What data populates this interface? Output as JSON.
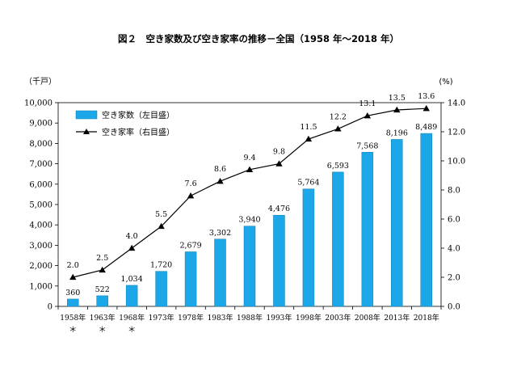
{
  "chart_data": {
    "type": "bar+line",
    "title": "図２　空き家数及び空き家率の推移－全国（1958 年～2018 年）",
    "left_axis_unit": "（千戸）",
    "right_axis_unit": "(%)",
    "left_ylim": [
      0,
      10000
    ],
    "left_ticks": [
      "0",
      "1,000",
      "2,000",
      "3,000",
      "4,000",
      "5,000",
      "6,000",
      "7,000",
      "8,000",
      "9,000",
      "10,000"
    ],
    "right_ylim": [
      0,
      14
    ],
    "right_ticks": [
      "0.0",
      "2.0",
      "4.0",
      "6.0",
      "8.0",
      "10.0",
      "12.0",
      "14.0"
    ],
    "categories": [
      "1958年",
      "1963年",
      "1968年",
      "1973年",
      "1978年",
      "1983年",
      "1988年",
      "1993年",
      "1998年",
      "2003年",
      "2008年",
      "2013年",
      "2018年"
    ],
    "category_notes": [
      "＊",
      "＊",
      "＊",
      "",
      "",
      "",
      "",
      "",
      "",
      "",
      "",
      "",
      ""
    ],
    "bar_series": {
      "name": "空き家数（左目盛）",
      "color": "#1ba7e8",
      "values": [
        360,
        522,
        1034,
        1720,
        2679,
        3302,
        3940,
        4476,
        5764,
        6593,
        7568,
        8196,
        8489
      ],
      "labels": [
        "360",
        "522",
        "1,034",
        "1,720",
        "2,679",
        "3,302",
        "3,940",
        "4,476",
        "5,764",
        "6,593",
        "7,568",
        "8,196",
        "8,489"
      ]
    },
    "line_series": {
      "name": "空き家率（右目盛）",
      "color": "#000000",
      "marker": "triangle",
      "values": [
        2.0,
        2.5,
        4.0,
        5.5,
        7.6,
        8.6,
        9.4,
        9.8,
        11.5,
        12.2,
        13.1,
        13.5,
        13.6
      ],
      "labels": [
        "2.0",
        "2.5",
        "4.0",
        "5.5",
        "7.6",
        "8.6",
        "9.4",
        "9.8",
        "11.5",
        "12.2",
        "13.1",
        "13.5",
        "13.6"
      ]
    },
    "legend_position": "top-left",
    "grid": false
  }
}
